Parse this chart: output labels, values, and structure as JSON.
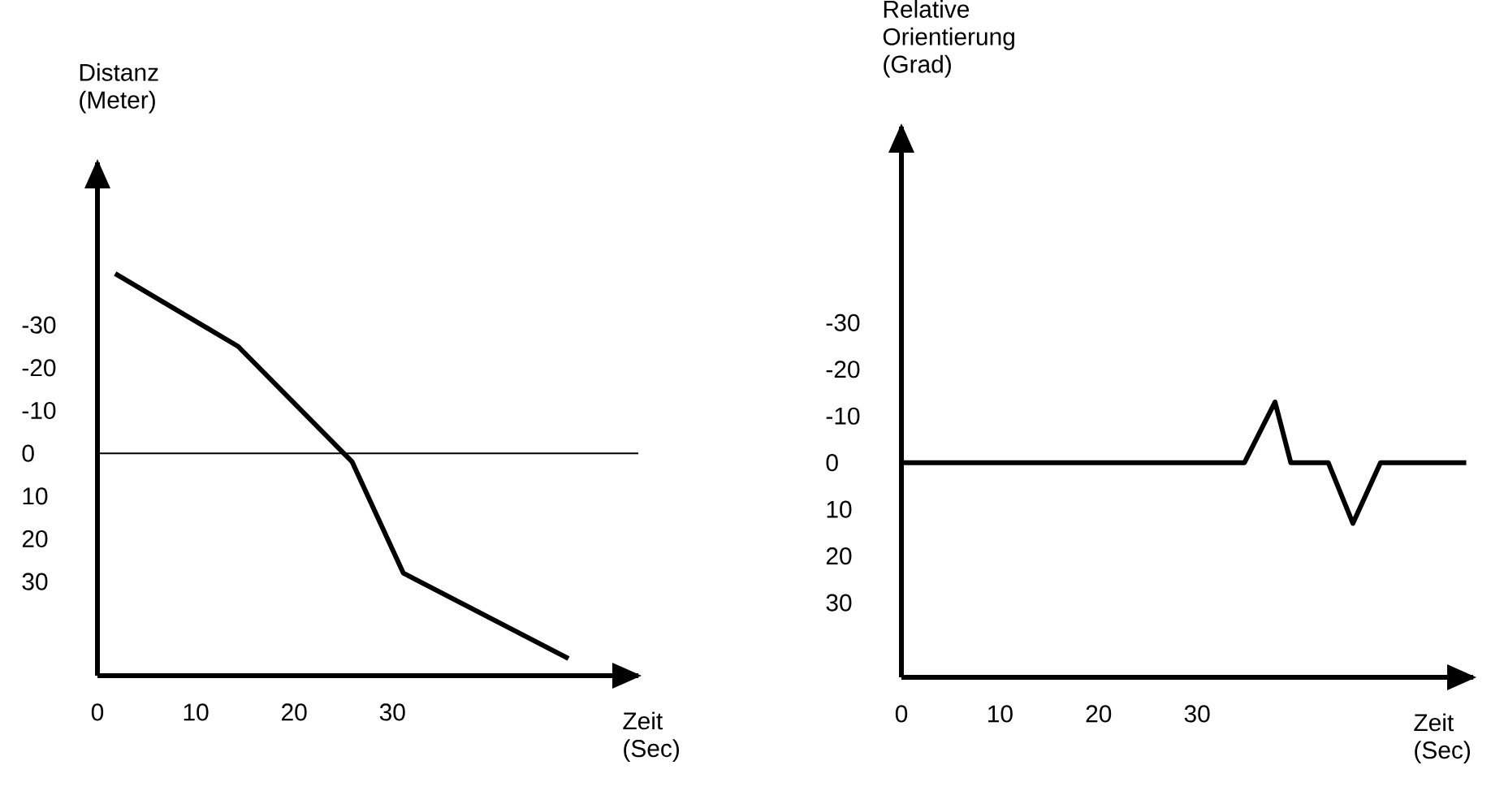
{
  "chart_data": [
    {
      "type": "line",
      "xlabel": "Zeit (Sec)",
      "ylabel": "Distanz (Meter)",
      "x": [
        1.8,
        14.3,
        25.9,
        31.1,
        47.9
      ],
      "values": [
        -42,
        -25,
        2,
        28,
        48
      ],
      "color": "#000000",
      "xlim": [
        0,
        55
      ],
      "ylim": [
        52,
        -68
      ],
      "xticks": [
        0,
        10,
        20,
        30
      ],
      "yticks": [
        -30,
        -20,
        -10,
        0,
        10,
        20,
        30
      ],
      "ref_lines": [
        {
          "axis": "y",
          "value": 0,
          "color": "#000000"
        }
      ],
      "grid": false,
      "marker": "none",
      "line_style": "solid"
    },
    {
      "type": "line",
      "xlabel": "Zeit (Sec)",
      "ylabel": "Relative Orientierung (Grad)",
      "x": [
        0,
        34.8,
        37.9,
        39.5,
        43.3,
        45.8,
        48.6,
        57.3
      ],
      "values": [
        0,
        0,
        -13,
        0,
        0,
        13,
        0,
        0
      ],
      "color": "#000000",
      "xlim": [
        0,
        58
      ],
      "ylim": [
        46,
        -72
      ],
      "xticks": [
        0,
        10,
        20,
        30
      ],
      "yticks": [
        -30,
        -20,
        -10,
        0,
        10,
        20,
        30
      ],
      "grid": false,
      "marker": "none",
      "line_style": "solid"
    }
  ]
}
